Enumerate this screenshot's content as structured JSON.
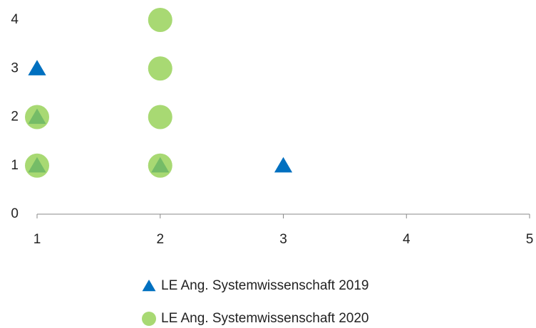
{
  "chart_data": {
    "type": "scatter",
    "series": [
      {
        "name": "LE Ang. Systemwissenschaft 2019",
        "color": "#0070c0",
        "marker": "triangle",
        "x": [
          1,
          1,
          1,
          2,
          3
        ],
        "values": [
          3,
          2,
          1,
          1,
          1
        ]
      },
      {
        "name": "LE Ang. Systemwissenschaft 2020",
        "color": "#92d050",
        "marker": "circle",
        "x": [
          1,
          1,
          2,
          2,
          2,
          2
        ],
        "values": [
          2,
          1,
          4,
          3,
          2,
          1
        ]
      }
    ],
    "xlim": [
      1,
      5
    ],
    "xticks": [
      1,
      2,
      3,
      4,
      5
    ],
    "ylim": [
      0,
      4
    ],
    "yticks": [
      0,
      1,
      2,
      3,
      4
    ],
    "grid": false,
    "legend": "bottom"
  }
}
